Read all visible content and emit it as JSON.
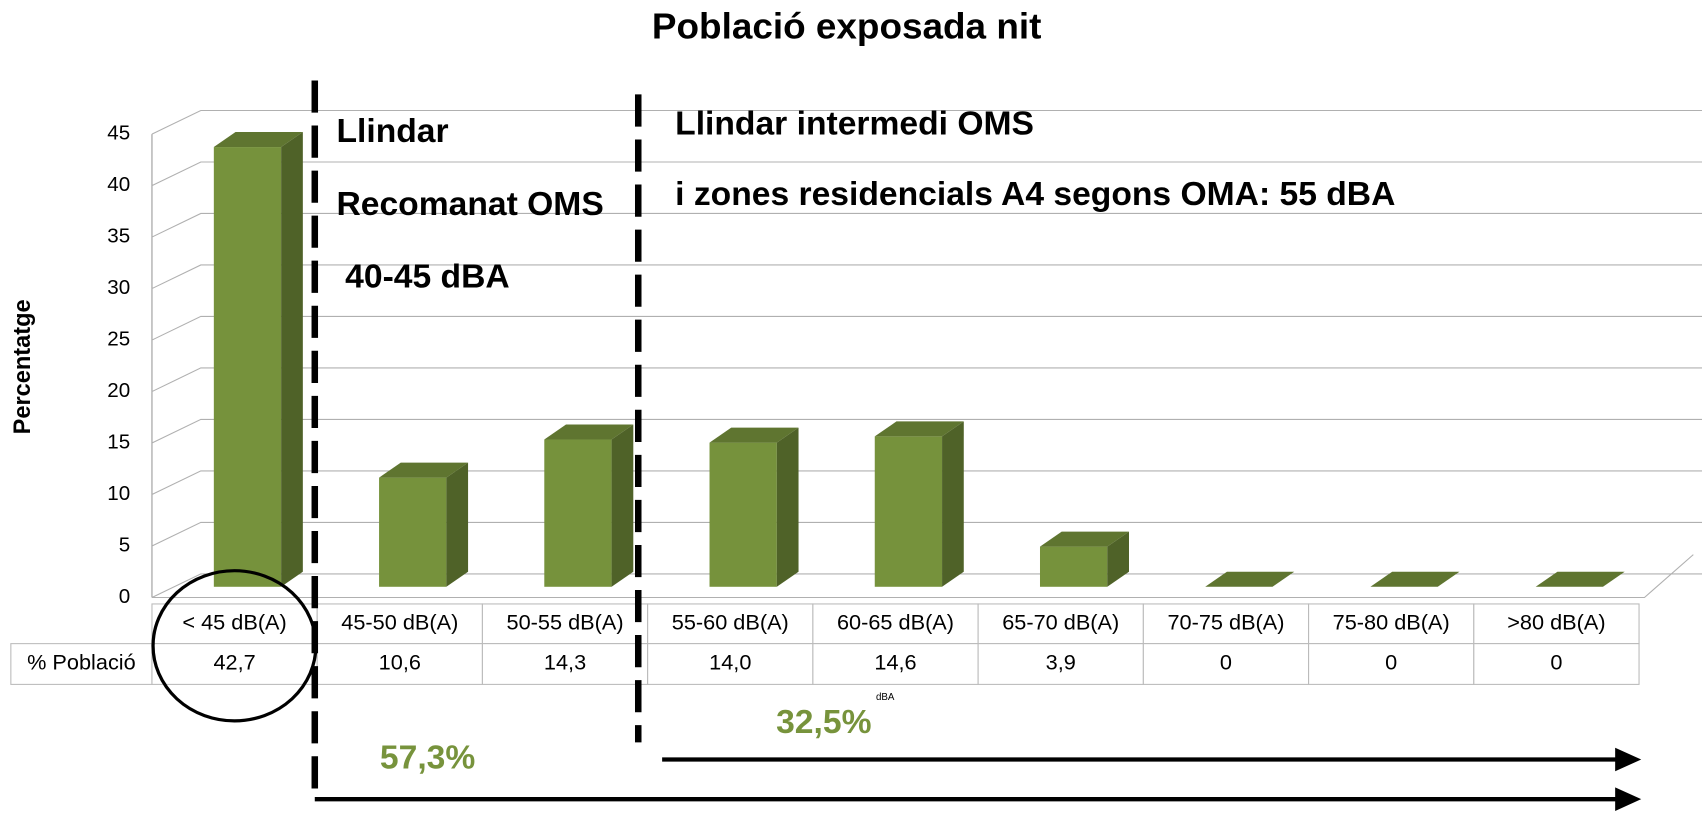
{
  "chart_data": {
    "type": "bar3d",
    "title": "Població exposada  nit",
    "ylabel": "Percentatge",
    "row_label": "% Població",
    "categories": [
      "< 45 dB(A)",
      "45-50 dB(A)",
      "50-55 dB(A)",
      "55-60 dB(A)",
      "60-65 dB(A)",
      "65-70 dB(A)",
      "70-75 dB(A)",
      "75-80 dB(A)",
      ">80 dB(A)"
    ],
    "values": [
      42.7,
      10.6,
      14.3,
      14.0,
      14.6,
      3.9,
      0,
      0,
      0
    ],
    "value_labels": [
      "42,7",
      "10,6",
      "14,3",
      "14,0",
      "14,6",
      "3,9",
      "0",
      "0",
      "0"
    ],
    "color": "#76923c",
    "ylim": [
      0,
      45
    ],
    "yticks": [
      0,
      5,
      10,
      15,
      20,
      25,
      30,
      35,
      40,
      45
    ],
    "grid": true,
    "annotations": [
      "Llindar",
      "Recomanat OMS",
      "40-45 dBA",
      "Llindar intermedi OMS",
      "i zones residencials A4 segons OMA: 55 dBA",
      "57,3%",
      "32,5%",
      "dBA"
    ]
  }
}
